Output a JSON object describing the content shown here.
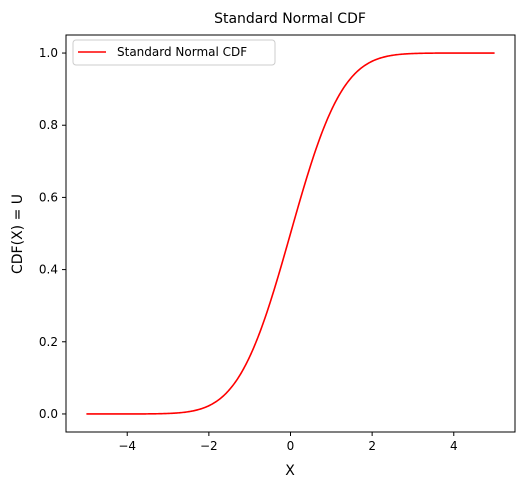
{
  "chart_data": {
    "type": "line",
    "title": "Standard Normal CDF",
    "xlabel": "X",
    "ylabel": "CDF(X) = U",
    "xlim": [
      -5.5,
      5.5
    ],
    "ylim": [
      -0.05,
      1.05
    ],
    "xticks": [
      -4,
      -2,
      0,
      2,
      4
    ],
    "yticks": [
      0.0,
      0.2,
      0.4,
      0.6,
      0.8,
      1.0
    ],
    "xtick_labels": [
      "−4",
      "−2",
      "0",
      "2",
      "4"
    ],
    "ytick_labels": [
      "0.0",
      "0.2",
      "0.4",
      "0.6",
      "0.8",
      "1.0"
    ],
    "grid": false,
    "legend_position": "top-left",
    "series": [
      {
        "name": "Standard Normal CDF",
        "color": "#ff0000",
        "x": [
          -5,
          -4.5,
          -4,
          -3.5,
          -3,
          -2.5,
          -2,
          -1.75,
          -1.5,
          -1.25,
          -1,
          -0.75,
          -0.5,
          -0.25,
          0,
          0.25,
          0.5,
          0.75,
          1,
          1.25,
          1.5,
          1.75,
          2,
          2.5,
          3,
          3.5,
          4,
          4.5,
          5
        ],
        "y": [
          3e-07,
          3.4e-06,
          3.17e-05,
          0.000233,
          0.00135,
          0.00621,
          0.02275,
          0.04006,
          0.06681,
          0.10565,
          0.15866,
          0.22663,
          0.30854,
          0.40129,
          0.5,
          0.59871,
          0.69146,
          0.77337,
          0.84134,
          0.89435,
          0.93319,
          0.95994,
          0.97725,
          0.99379,
          0.99865,
          0.99977,
          0.99997,
          0.999997,
          0.9999997
        ]
      }
    ]
  }
}
